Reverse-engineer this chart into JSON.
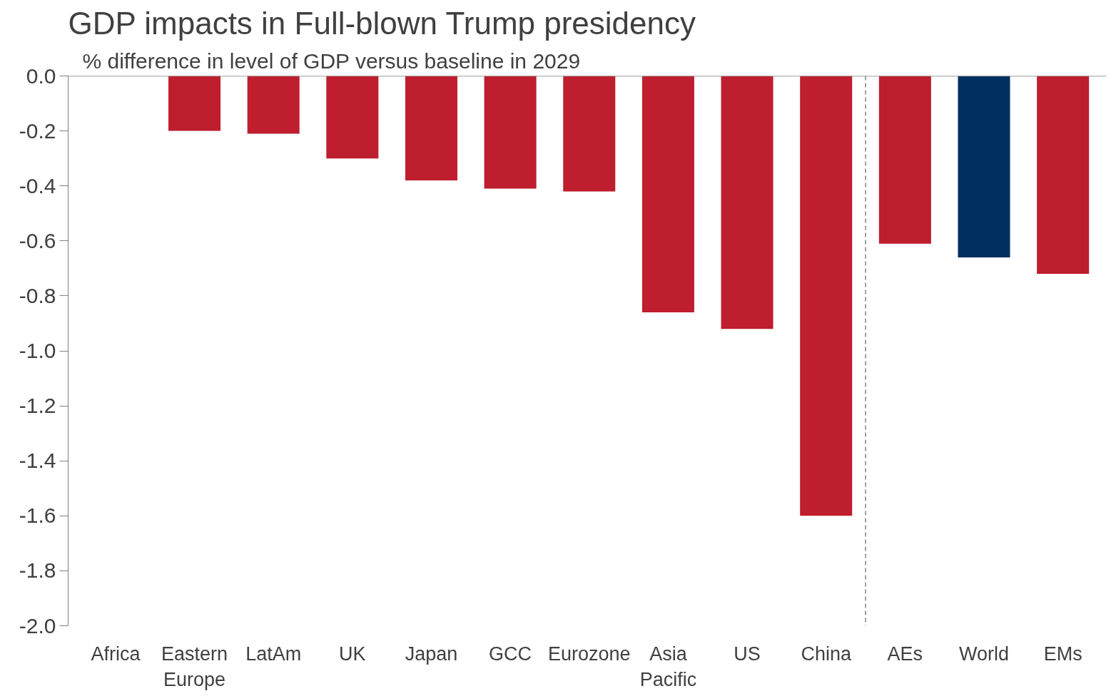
{
  "chart_data": {
    "type": "bar",
    "title": "GDP impacts in Full-blown Trump presidency",
    "subtitle": "% difference in level of GDP versus baseline in 2029",
    "categories": [
      "Africa",
      "Eastern\nEurope",
      "LatAm",
      "UK",
      "Japan",
      "GCC",
      "Eurozone",
      "Asia\nPacific",
      "US",
      "China",
      "AEs",
      "World",
      "EMs"
    ],
    "values": [
      0,
      -0.2,
      -0.21,
      -0.3,
      -0.38,
      -0.41,
      -0.42,
      -0.86,
      -0.92,
      -1.6,
      -0.61,
      -0.66,
      -0.72
    ],
    "colors": [
      "#be1e2d",
      "#be1e2d",
      "#be1e2d",
      "#be1e2d",
      "#be1e2d",
      "#be1e2d",
      "#be1e2d",
      "#be1e2d",
      "#be1e2d",
      "#be1e2d",
      "#be1e2d",
      "#002f5f",
      "#be1e2d"
    ],
    "ylim": [
      -2.0,
      0.0
    ],
    "yticks": [
      {
        "value": 0,
        "label": "0.0"
      },
      {
        "value": -0.2,
        "label": "-0.2"
      },
      {
        "value": -0.4,
        "label": "-0.4"
      },
      {
        "value": -0.6,
        "label": "-0.6"
      },
      {
        "value": -0.8,
        "label": "-0.8"
      },
      {
        "value": -1.0,
        "label": "-1.0"
      },
      {
        "value": -1.2,
        "label": "-1.2"
      },
      {
        "value": -1.4,
        "label": "-1.4"
      },
      {
        "value": -1.6,
        "label": "-1.6"
      },
      {
        "value": -1.8,
        "label": "-1.8"
      },
      {
        "value": -2.0,
        "label": "-2.0"
      }
    ],
    "grid": false
  }
}
